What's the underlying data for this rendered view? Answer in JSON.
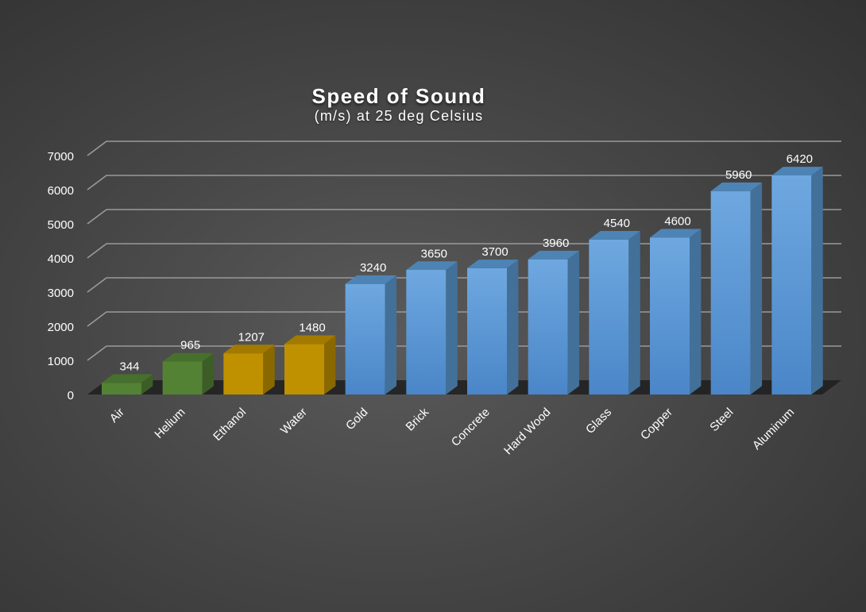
{
  "chart_data": {
    "type": "bar",
    "title": "Speed of Sound",
    "subtitle": "(m/s) at 25 deg Celsius",
    "categories": [
      "Air",
      "Helium",
      "Ethanol",
      "Water",
      "Gold",
      "Brick",
      "Concrete",
      "Hard Wood",
      "Glass",
      "Copper",
      "Steel",
      "Aluminum"
    ],
    "values": [
      344,
      965,
      1207,
      1480,
      3240,
      3650,
      3700,
      3960,
      4540,
      4600,
      5960,
      6420
    ],
    "bar_colors": [
      "#548235",
      "#548235",
      "#bf9000",
      "#bf9000",
      "#5b9bd5",
      "#5b9bd5",
      "#5b9bd5",
      "#5b9bd5",
      "#5b9bd5",
      "#5b9bd5",
      "#5b9bd5",
      "#5b9bd5"
    ],
    "ylim": [
      0,
      7000
    ],
    "yticks": [
      0,
      1000,
      2000,
      3000,
      4000,
      5000,
      6000,
      7000
    ],
    "grid": true,
    "data_labels": true,
    "legend": "none",
    "xlabel": "",
    "ylabel": ""
  }
}
